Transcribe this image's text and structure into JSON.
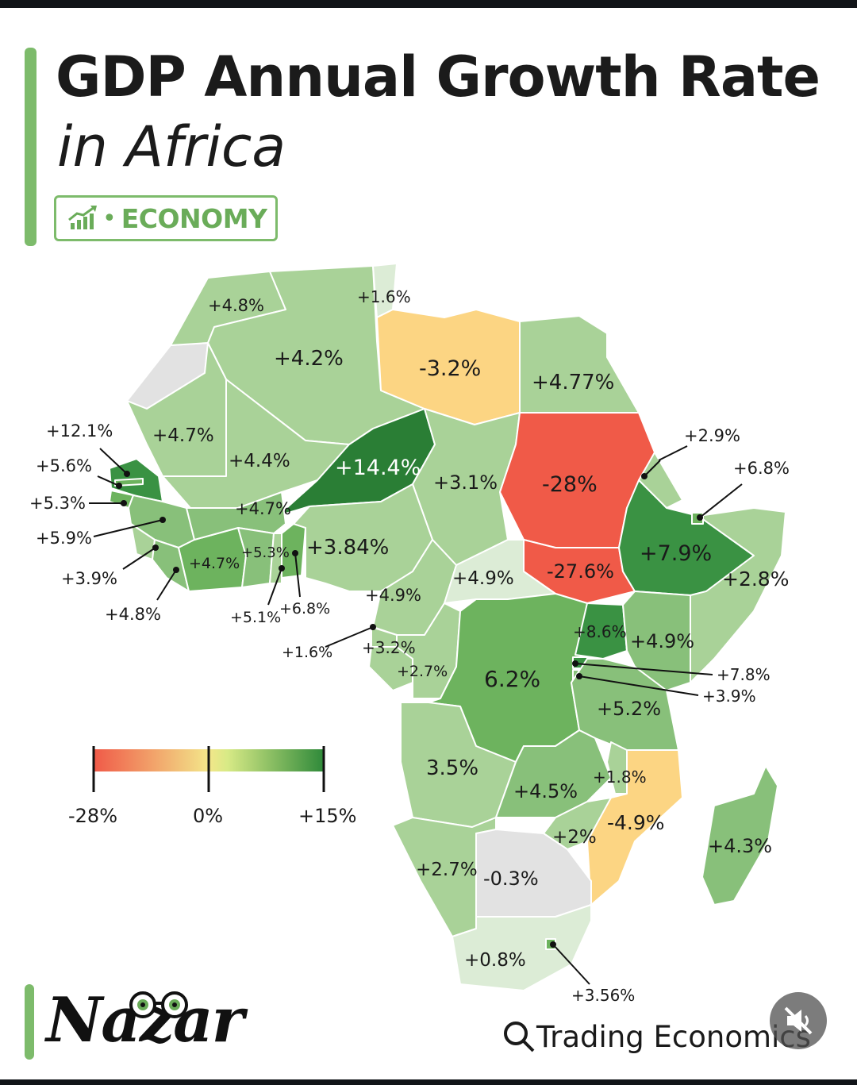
{
  "header": {
    "title_line1": "GDP Annual Growth Rate",
    "title_line2": "in Africa",
    "badge_label": "ECONOMY",
    "badge_icon": "growth-bar-chart-icon"
  },
  "legend": {
    "min_label": "-28%",
    "mid_label": "0%",
    "max_label": "+15%",
    "colors": {
      "negative": "#f05a48",
      "zero": "#f3e68a",
      "positive": "#2f8a3a"
    }
  },
  "colors": {
    "accent": "#7dbb6b",
    "red": "#f05a48",
    "orange": "#fcd583",
    "light_green": "#a9d298",
    "mid_green": "#88c07a",
    "green": "#6db35e",
    "dark_green": "#3a9243",
    "darkest_green": "#2a7e35",
    "no_data": "#e2e2e2"
  },
  "map_labels": [
    {
      "country": "Morocco",
      "value": "+4.8%"
    },
    {
      "country": "Tunisia",
      "value": "+1.6%"
    },
    {
      "country": "Algeria",
      "value": "+4.2%"
    },
    {
      "country": "Libya",
      "value": "-3.2%"
    },
    {
      "country": "Egypt",
      "value": "+4.77%"
    },
    {
      "country": "Senegal",
      "value": "+12.1%"
    },
    {
      "country": "Mauritania",
      "value": "+4.7%"
    },
    {
      "country": "Gambia",
      "value": "+5.6%"
    },
    {
      "country": "Guinea-Bissau",
      "value": "+5.3%"
    },
    {
      "country": "Guinea",
      "value": "+5.9%"
    },
    {
      "country": "Sierra Leone",
      "value": "+3.9%"
    },
    {
      "country": "Liberia",
      "value": "+4.8%"
    },
    {
      "country": "Mali",
      "value": "+4.4%"
    },
    {
      "country": "Niger",
      "value": "+14.4%"
    },
    {
      "country": "Chad",
      "value": "+3.1%"
    },
    {
      "country": "Sudan",
      "value": "-28%"
    },
    {
      "country": "Burkina Faso",
      "value": "+4.7%"
    },
    {
      "country": "Cote d'Ivoire",
      "value": "+4.7%"
    },
    {
      "country": "Ghana",
      "value": "+5.3%"
    },
    {
      "country": "Nigeria",
      "value": "+3.84%"
    },
    {
      "country": "Togo",
      "value": "+5.1%"
    },
    {
      "country": "Benin",
      "value": "+6.8%"
    },
    {
      "country": "Eritrea",
      "value": "+2.9%"
    },
    {
      "country": "Djibouti",
      "value": "+6.8%"
    },
    {
      "country": "Ethiopia",
      "value": "+7.9%"
    },
    {
      "country": "Somalia",
      "value": "+2.8%"
    },
    {
      "country": "South Sudan",
      "value": "-27.6%"
    },
    {
      "country": "Central African Republic",
      "value": "+4.9%"
    },
    {
      "country": "Cameroon",
      "value": "+4.9%"
    },
    {
      "country": "Equatorial Guinea",
      "value": "+1.6%"
    },
    {
      "country": "Gabon",
      "value": "+3.2%"
    },
    {
      "country": "Congo",
      "value": "+2.7%"
    },
    {
      "country": "DR Congo",
      "value": "6.2%"
    },
    {
      "country": "Uganda",
      "value": "+8.6%"
    },
    {
      "country": "Kenya",
      "value": "+4.9%"
    },
    {
      "country": "Rwanda",
      "value": "+7.8%"
    },
    {
      "country": "Burundi",
      "value": "+3.9%"
    },
    {
      "country": "Tanzania",
      "value": "+5.2%"
    },
    {
      "country": "Angola",
      "value": "3.5%"
    },
    {
      "country": "Zambia",
      "value": "+4.5%"
    },
    {
      "country": "Malawi",
      "value": "+1.8%"
    },
    {
      "country": "Mozambique",
      "value": "-4.9%"
    },
    {
      "country": "Zimbabwe",
      "value": "+2%"
    },
    {
      "country": "Madagascar",
      "value": "+4.3%"
    },
    {
      "country": "Namibia",
      "value": "+2.7%"
    },
    {
      "country": "Botswana",
      "value": "-0.3%"
    },
    {
      "country": "South Africa",
      "value": "+0.8%"
    },
    {
      "country": "Eswatini",
      "value": "+3.56%"
    }
  ],
  "footer": {
    "brand": "Nazar",
    "brand_icon": "eyeglasses-icon",
    "source": "Trading Economics",
    "source_icon": "search-icon",
    "mute_icon": "muted-speaker-icon"
  }
}
